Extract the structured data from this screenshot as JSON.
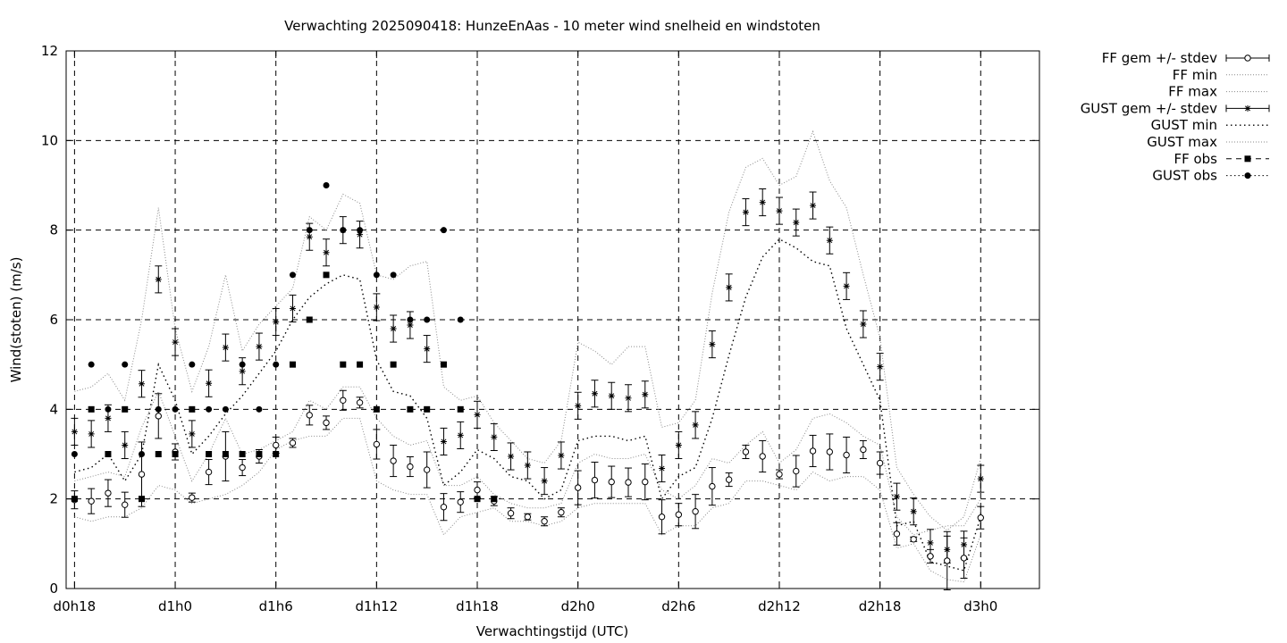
{
  "chart_data": {
    "type": "line",
    "title": "Verwachting 2025090418: HunzeEnAas - 10 meter wind snelheid en windstoten",
    "xlabel": "Verwachtingstijd (UTC)",
    "ylabel": "Wind(stoten) (m/s)",
    "xlim": [
      -0.5,
      57.5
    ],
    "ylim": [
      0,
      12
    ],
    "grid": true,
    "legend_position": "outside-right",
    "x_ticks": [
      {
        "x": 0,
        "label": "d0h18"
      },
      {
        "x": 6,
        "label": "d1h0"
      },
      {
        "x": 12,
        "label": "d1h6"
      },
      {
        "x": 18,
        "label": "d1h12"
      },
      {
        "x": 24,
        "label": "d1h18"
      },
      {
        "x": 30,
        "label": "d2h0"
      },
      {
        "x": 36,
        "label": "d2h6"
      },
      {
        "x": 42,
        "label": "d2h12"
      },
      {
        "x": 48,
        "label": "d2h18"
      },
      {
        "x": 54,
        "label": "d3h0"
      }
    ],
    "y_ticks": [
      0,
      2,
      4,
      6,
      8,
      10,
      12
    ],
    "series": [
      {
        "name": "FF gem +/- stdev",
        "kind": "errorbar-circle",
        "x": [
          0,
          1,
          2,
          3,
          4,
          5,
          6,
          7,
          8,
          9,
          10,
          11,
          12,
          13,
          14,
          15,
          16,
          17,
          18,
          19,
          20,
          21,
          22,
          23,
          24,
          25,
          26,
          27,
          28,
          29,
          30,
          31,
          32,
          33,
          34,
          35,
          36,
          37,
          38,
          39,
          40,
          41,
          42,
          43,
          44,
          45,
          46,
          47,
          48,
          49,
          50,
          51,
          52,
          53,
          54
        ],
        "values": [
          1.98,
          1.95,
          2.13,
          1.87,
          2.55,
          3.85,
          3.05,
          2.03,
          2.6,
          2.95,
          2.7,
          2.95,
          3.2,
          3.25,
          3.87,
          3.7,
          4.2,
          4.15,
          3.22,
          2.85,
          2.72,
          2.65,
          1.82,
          1.93,
          2.2,
          1.95,
          1.68,
          1.6,
          1.5,
          1.7,
          2.25,
          2.42,
          2.38,
          2.37,
          2.38,
          1.6,
          1.65,
          1.72,
          2.28,
          2.43,
          3.05,
          2.95,
          2.55,
          2.62,
          3.07,
          3.05,
          2.98,
          3.1,
          2.8,
          1.22,
          1.1,
          0.72,
          0.62,
          0.68,
          1.58
        ],
        "stdev": [
          0.2,
          0.28,
          0.3,
          0.28,
          0.72,
          0.5,
          0.18,
          0.1,
          0.28,
          0.55,
          0.18,
          0.15,
          0.18,
          0.1,
          0.22,
          0.15,
          0.22,
          0.12,
          0.33,
          0.35,
          0.22,
          0.4,
          0.3,
          0.23,
          0.18,
          0.1,
          0.12,
          0.07,
          0.1,
          0.1,
          0.38,
          0.4,
          0.35,
          0.32,
          0.4,
          0.38,
          0.25,
          0.38,
          0.42,
          0.15,
          0.15,
          0.35,
          0.1,
          0.35,
          0.35,
          0.4,
          0.4,
          0.2,
          0.25,
          0.25,
          0.05,
          0.15,
          0.65,
          0.45,
          0.25
        ]
      },
      {
        "name": "FF min",
        "kind": "line-dotted",
        "x": [
          0,
          1,
          2,
          3,
          4,
          5,
          6,
          7,
          8,
          9,
          10,
          11,
          12,
          13,
          14,
          15,
          16,
          17,
          18,
          19,
          20,
          21,
          22,
          23,
          24,
          25,
          26,
          27,
          28,
          29,
          30,
          31,
          32,
          33,
          34,
          35,
          36,
          37,
          38,
          39,
          40,
          41,
          42,
          43,
          44,
          45,
          46,
          47,
          48,
          49,
          50,
          51,
          52,
          53,
          54
        ],
        "values": [
          1.6,
          1.5,
          1.6,
          1.6,
          1.8,
          2.3,
          2.2,
          1.9,
          2.0,
          2.1,
          2.3,
          2.6,
          3.1,
          3.3,
          3.4,
          3.4,
          3.8,
          3.8,
          2.4,
          2.2,
          2.1,
          2.1,
          1.2,
          1.6,
          1.7,
          1.8,
          1.5,
          1.5,
          1.4,
          1.5,
          1.8,
          1.9,
          1.9,
          1.9,
          1.9,
          1.2,
          1.4,
          1.4,
          1.8,
          1.9,
          2.4,
          2.4,
          2.3,
          2.2,
          2.6,
          2.4,
          2.5,
          2.5,
          2.2,
          0.9,
          1.0,
          0.4,
          0.2,
          0.15,
          1.2
        ]
      },
      {
        "name": "FF max",
        "kind": "line-dotted",
        "x": [
          0,
          1,
          2,
          3,
          4,
          5,
          6,
          7,
          8,
          9,
          10,
          11,
          12,
          13,
          14,
          15,
          16,
          17,
          18,
          19,
          20,
          21,
          22,
          23,
          24,
          25,
          26,
          27,
          28,
          29,
          30,
          31,
          32,
          33,
          34,
          35,
          36,
          37,
          38,
          39,
          40,
          41,
          42,
          43,
          44,
          45,
          46,
          47,
          48,
          49,
          50,
          51,
          52,
          53,
          54
        ],
        "values": [
          2.4,
          2.5,
          2.6,
          2.5,
          3.6,
          4.4,
          3.4,
          2.4,
          3.0,
          3.8,
          3.0,
          3.1,
          3.3,
          3.5,
          4.2,
          4.0,
          4.5,
          4.5,
          3.8,
          3.4,
          3.2,
          3.3,
          2.3,
          2.3,
          2.5,
          2.1,
          1.9,
          1.8,
          1.8,
          1.9,
          2.8,
          3.0,
          2.9,
          2.9,
          3.0,
          2.2,
          2.0,
          2.3,
          2.9,
          2.8,
          3.2,
          3.5,
          2.8,
          3.1,
          3.8,
          3.9,
          3.7,
          3.4,
          3.2,
          1.6,
          1.2,
          1.3,
          1.4,
          1.4,
          2.0
        ]
      },
      {
        "name": "GUST gem +/- stdev",
        "kind": "errorbar-star",
        "x": [
          0,
          1,
          2,
          3,
          4,
          5,
          6,
          7,
          8,
          9,
          10,
          11,
          12,
          13,
          14,
          15,
          16,
          17,
          18,
          19,
          20,
          21,
          22,
          23,
          24,
          25,
          26,
          27,
          28,
          29,
          30,
          31,
          32,
          33,
          34,
          35,
          36,
          37,
          38,
          39,
          40,
          41,
          42,
          43,
          44,
          45,
          46,
          47,
          48,
          49,
          50,
          51,
          52,
          53,
          54
        ],
        "values": [
          3.5,
          3.45,
          3.8,
          3.2,
          4.57,
          6.9,
          5.5,
          3.45,
          4.58,
          5.38,
          4.85,
          5.4,
          5.95,
          6.25,
          7.85,
          7.5,
          8.0,
          7.9,
          6.28,
          5.8,
          5.88,
          5.35,
          3.28,
          3.42,
          3.88,
          3.38,
          2.95,
          2.75,
          2.4,
          2.97,
          4.08,
          4.35,
          4.3,
          4.25,
          4.33,
          2.68,
          3.2,
          3.65,
          5.45,
          6.72,
          8.4,
          8.62,
          8.43,
          8.17,
          8.55,
          7.77,
          6.75,
          5.9,
          4.95,
          2.05,
          1.72,
          1.02,
          0.87,
          0.98,
          2.45
        ]
      },
      {
        "name": "GUST min",
        "kind": "line-dotted-dense",
        "x": [
          0,
          1,
          2,
          3,
          4,
          5,
          6,
          7,
          8,
          9,
          10,
          11,
          12,
          13,
          14,
          15,
          16,
          17,
          18,
          19,
          20,
          21,
          22,
          23,
          24,
          25,
          26,
          27,
          28,
          29,
          30,
          31,
          32,
          33,
          34,
          35,
          36,
          37,
          38,
          39,
          40,
          41,
          42,
          43,
          44,
          45,
          46,
          47,
          48,
          49,
          50,
          51,
          52,
          53,
          54
        ],
        "values": [
          2.6,
          2.7,
          3.0,
          2.4,
          3.0,
          5.0,
          4.2,
          3.0,
          3.4,
          3.9,
          4.3,
          4.8,
          5.3,
          6.0,
          6.5,
          6.8,
          7.0,
          6.9,
          5.1,
          4.4,
          4.3,
          3.8,
          2.3,
          2.6,
          3.1,
          2.9,
          2.5,
          2.4,
          2.0,
          2.2,
          3.3,
          3.4,
          3.4,
          3.3,
          3.4,
          2.0,
          2.5,
          2.7,
          3.8,
          5.2,
          6.5,
          7.4,
          7.8,
          7.6,
          7.3,
          7.2,
          5.8,
          5.0,
          4.2,
          1.4,
          1.5,
          0.6,
          0.5,
          0.4,
          1.6
        ]
      },
      {
        "name": "GUST max",
        "kind": "line-dotted",
        "x": [
          0,
          1,
          2,
          3,
          4,
          5,
          6,
          7,
          8,
          9,
          10,
          11,
          12,
          13,
          14,
          15,
          16,
          17,
          18,
          19,
          20,
          21,
          22,
          23,
          24,
          25,
          26,
          27,
          28,
          29,
          30,
          31,
          32,
          33,
          34,
          35,
          36,
          37,
          38,
          39,
          40,
          41,
          42,
          43,
          44,
          45,
          46,
          47,
          48,
          49,
          50,
          51,
          52,
          53,
          54
        ],
        "values": [
          4.4,
          4.5,
          4.8,
          4.2,
          6.0,
          8.5,
          5.8,
          4.4,
          5.4,
          7.0,
          5.3,
          5.9,
          6.3,
          6.7,
          8.3,
          8.0,
          8.8,
          8.6,
          7.0,
          6.9,
          7.2,
          7.3,
          4.5,
          4.2,
          4.3,
          3.7,
          3.3,
          2.9,
          2.8,
          3.3,
          5.5,
          5.3,
          5.0,
          5.4,
          5.4,
          3.6,
          3.7,
          4.2,
          6.6,
          8.4,
          9.4,
          9.6,
          9.0,
          9.2,
          10.2,
          9.1,
          8.5,
          7.0,
          5.6,
          2.7,
          2.1,
          1.6,
          1.3,
          1.6,
          2.9
        ]
      },
      {
        "name": "FF obs",
        "kind": "points-square",
        "x": [
          0,
          1,
          2,
          3,
          4,
          5,
          6,
          7,
          8,
          9,
          10,
          11,
          12,
          13,
          14,
          15,
          16,
          17,
          18,
          19,
          20,
          21,
          22,
          23,
          24,
          25
        ],
        "values": [
          2,
          4,
          3,
          4,
          2,
          3,
          3,
          4,
          3,
          3,
          3,
          3,
          3,
          5,
          6,
          7,
          5,
          5,
          4,
          5,
          4,
          4,
          5,
          4,
          2,
          2
        ]
      },
      {
        "name": "GUST obs",
        "kind": "points-circle",
        "x": [
          0,
          1,
          2,
          3,
          4,
          5,
          6,
          7,
          8,
          9,
          10,
          11,
          12,
          13,
          14,
          15,
          16,
          17,
          18,
          19,
          20,
          21,
          22,
          23
        ],
        "values": [
          3,
          5,
          4,
          5,
          3,
          4,
          4,
          5,
          4,
          4,
          5,
          4,
          5,
          7,
          8,
          9,
          8,
          8,
          7,
          7,
          6,
          6,
          8,
          6
        ]
      }
    ]
  }
}
